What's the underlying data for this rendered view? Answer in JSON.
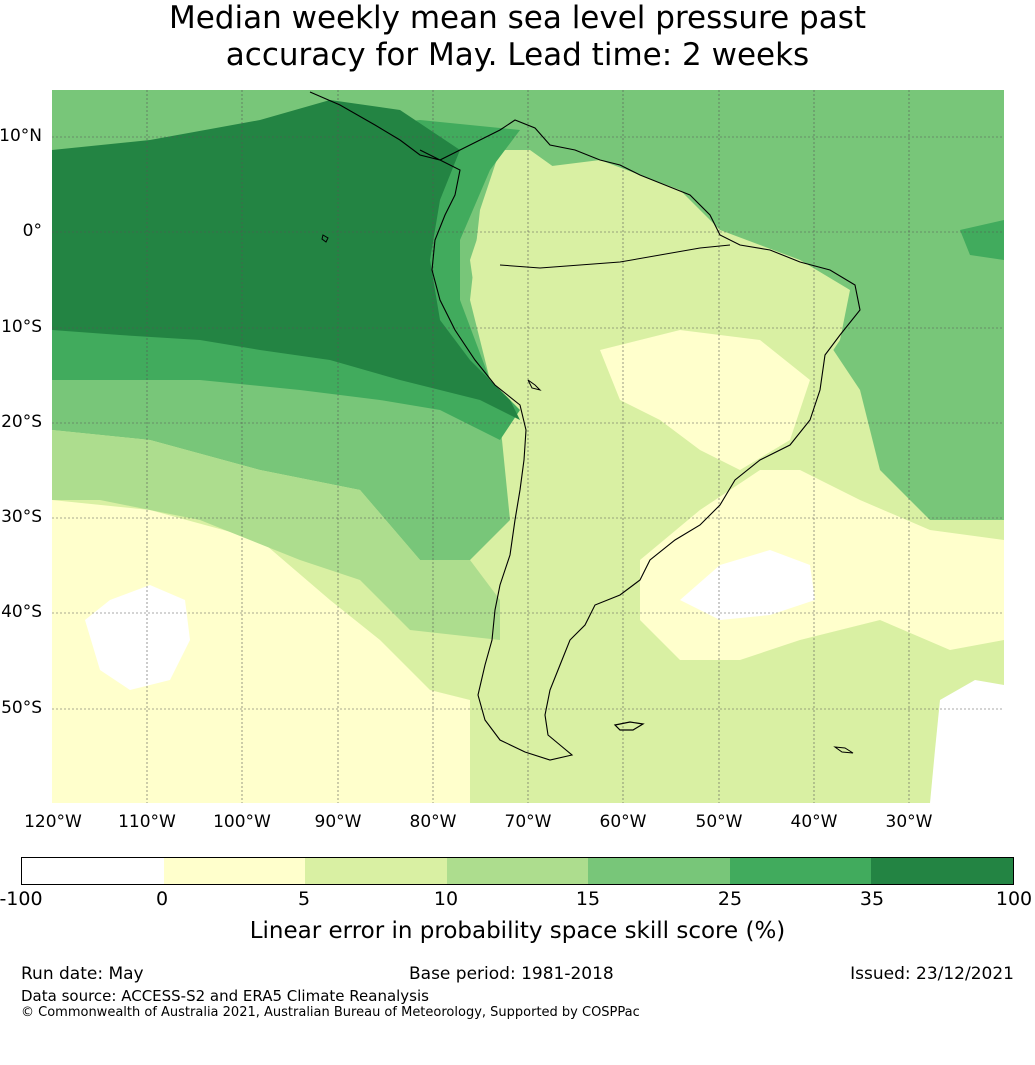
{
  "title_line1": "Median weekly mean sea level pressure past",
  "title_line2": "accuracy for May. Lead time: 2 weeks",
  "lat_labels": [
    "10°N",
    "0°",
    "10°S",
    "20°S",
    "30°S",
    "40°S",
    "50°S"
  ],
  "lon_labels": [
    "120°W",
    "110°W",
    "100°W",
    "90°W",
    "80°W",
    "70°W",
    "60°W",
    "50°W",
    "40°W",
    "30°W"
  ],
  "colorbar": {
    "ticks": [
      "-100",
      "0",
      "5",
      "10",
      "15",
      "25",
      "35",
      "100"
    ],
    "colors": [
      "#ffffff",
      "#ffffcc",
      "#d9f0a3",
      "#addd8e",
      "#78c679",
      "#41ab5d",
      "#238443"
    ],
    "label": "Linear error in probability space skill score (%)"
  },
  "footer": {
    "run_date": "Run date: May",
    "base_period": "Base period: 1981-2018",
    "issued": "Issued: 23/12/2021",
    "data_source": "Data source: ACCESS-S2 and ERA5 Climate Reanalysis",
    "copyright": "© Commonwealth of Australia 2021, Australian Bureau of Meteorology, Supported by COSPPac"
  }
}
